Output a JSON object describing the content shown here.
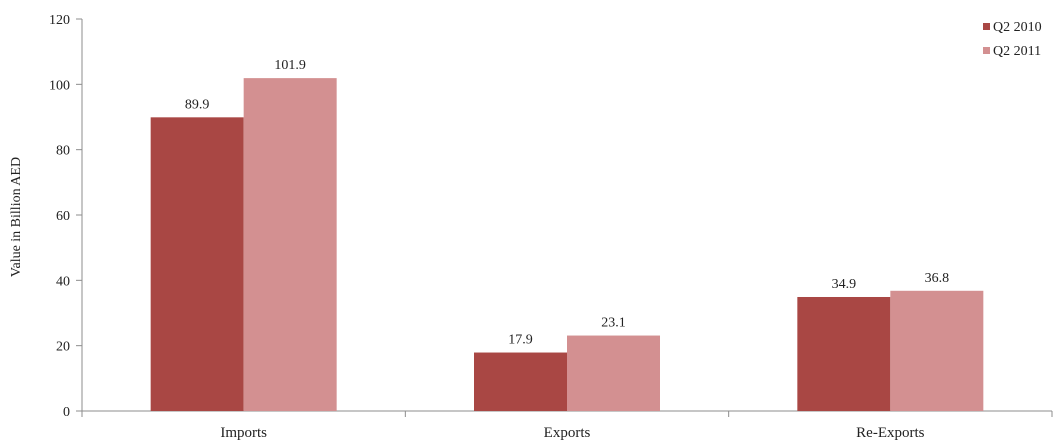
{
  "chart_data": {
    "type": "bar",
    "title": "",
    "xlabel": "",
    "ylabel": "Value in Billion AED",
    "ylim": [
      0,
      120
    ],
    "yticks": [
      0,
      20,
      40,
      60,
      80,
      100,
      120
    ],
    "grid": false,
    "legend_position": "top-right",
    "categories": [
      "Imports",
      "Exports",
      "Re-Exports"
    ],
    "series": [
      {
        "name": "Q2 2010",
        "color": "#a94744",
        "values": [
          89.9,
          17.9,
          34.9
        ],
        "labels": [
          "89.9",
          "17.9",
          "34.9"
        ]
      },
      {
        "name": "Q2 2011",
        "color": "#d39091",
        "values": [
          101.9,
          23.1,
          36.8
        ],
        "labels": [
          "101.9",
          "23.1",
          "36.8"
        ]
      }
    ]
  }
}
